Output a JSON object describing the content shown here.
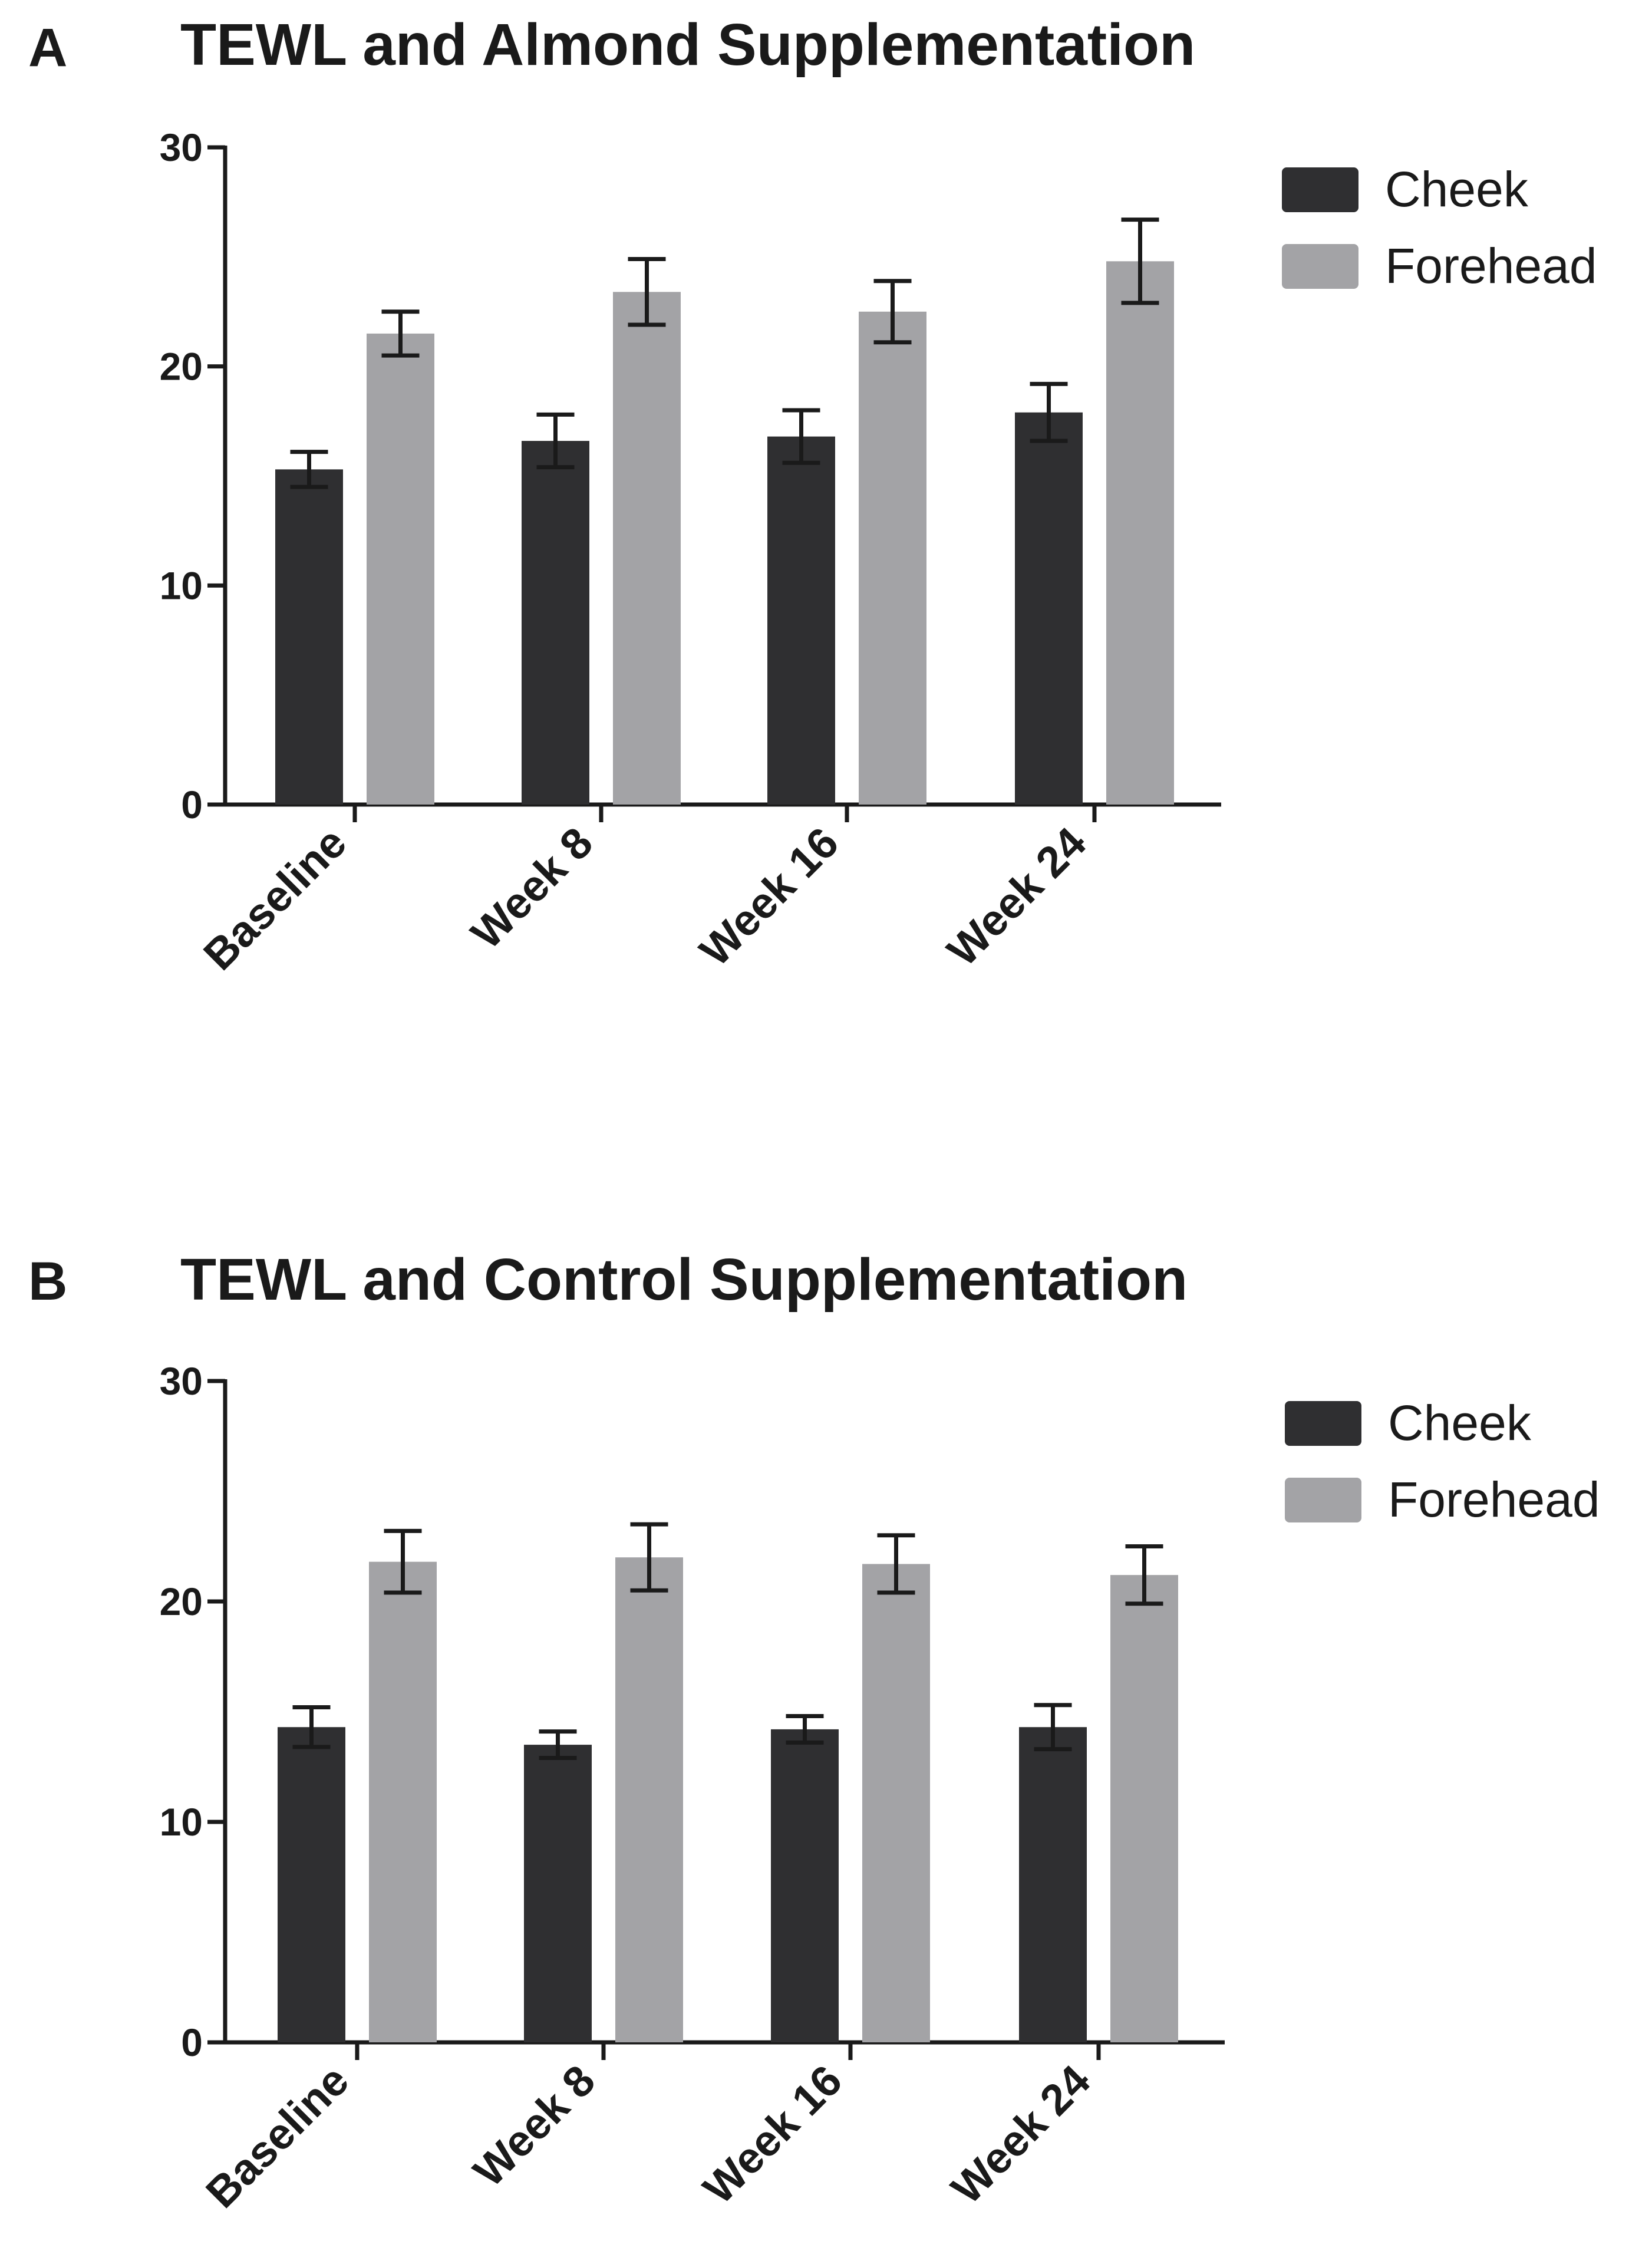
{
  "chart_data": [
    {
      "type": "bar",
      "panel": "A",
      "title": "TEWL and Almond Supplementation",
      "categories": [
        "Baseline",
        "Week 8",
        "Week 16",
        "Week 24"
      ],
      "ylim": [
        0,
        30
      ],
      "yticks": [
        0,
        10,
        20,
        30
      ],
      "xlabel": "",
      "ylabel": "",
      "grid": false,
      "legend_position": "top-right",
      "series": [
        {
          "name": "Cheek",
          "color": "#2f2f31",
          "values": [
            15.3,
            16.6,
            16.8,
            17.9
          ],
          "errors": [
            0.8,
            1.2,
            1.2,
            1.3
          ]
        },
        {
          "name": "Forehead",
          "color": "#a3a3a6",
          "values": [
            21.5,
            23.4,
            22.5,
            24.8
          ],
          "errors": [
            1.0,
            1.5,
            1.4,
            1.9
          ]
        }
      ]
    },
    {
      "type": "bar",
      "panel": "B",
      "title": "TEWL and Control Supplementation",
      "categories": [
        "Baseline",
        "Week 8",
        "Week 16",
        "Week 24"
      ],
      "ylim": [
        0,
        30
      ],
      "yticks": [
        0,
        10,
        20,
        30
      ],
      "xlabel": "",
      "ylabel": "",
      "grid": false,
      "legend_position": "top-right",
      "series": [
        {
          "name": "Cheek",
          "color": "#2f2f31",
          "values": [
            14.3,
            13.5,
            14.2,
            14.3
          ],
          "errors": [
            0.9,
            0.6,
            0.6,
            1.0
          ]
        },
        {
          "name": "Forehead",
          "color": "#a3a3a6",
          "values": [
            21.8,
            22.0,
            21.7,
            21.2
          ],
          "errors": [
            1.4,
            1.5,
            1.3,
            1.3
          ]
        }
      ]
    }
  ]
}
